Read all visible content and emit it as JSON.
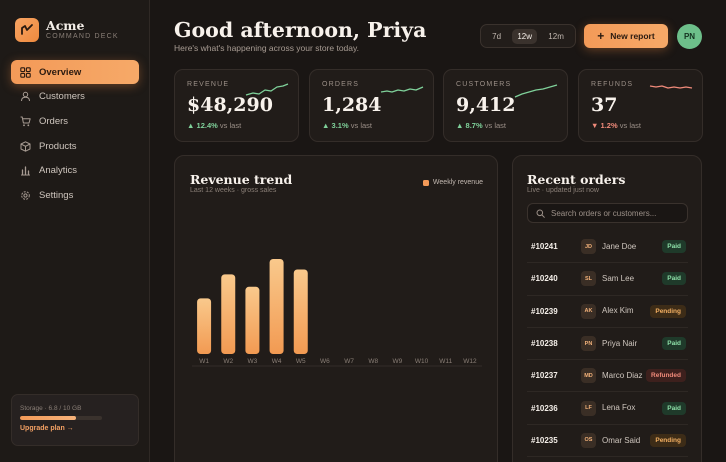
{
  "brand": {
    "name": "Acme",
    "subtitle": "COMMAND DECK"
  },
  "nav": [
    {
      "label": "Overview",
      "icon": "grid-icon",
      "active": true
    },
    {
      "label": "Customers",
      "icon": "user-icon",
      "active": false
    },
    {
      "label": "Orders",
      "icon": "cart-icon",
      "active": false
    },
    {
      "label": "Products",
      "icon": "box-icon",
      "active": false
    },
    {
      "label": "Analytics",
      "icon": "bar-chart-icon",
      "active": false
    },
    {
      "label": "Settings",
      "icon": "gear-icon",
      "active": false
    }
  ],
  "storage": {
    "label": "Storage · 6.8 / 10 GB",
    "used_fraction": 0.68,
    "link": "Upgrade plan →"
  },
  "header": {
    "greeting": "Good afternoon, Priya",
    "subtitle": "Here's what's happening across your store today.",
    "ranges": [
      "7d",
      "12w",
      "12m"
    ],
    "active_range": "12w",
    "new_report": "New report",
    "avatar": "PN"
  },
  "kpis": [
    {
      "label": "REVENUE",
      "value": "$48,290",
      "change": "12.4%",
      "direction": "up",
      "suffix": "vs last",
      "color": "#7fd19a"
    },
    {
      "label": "ORDERS",
      "value": "1,284",
      "change": "3.1%",
      "direction": "up",
      "suffix": "vs last",
      "color": "#7fd19a"
    },
    {
      "label": "CUSTOMERS",
      "value": "9,412",
      "change": "8.7%",
      "direction": "up",
      "suffix": "vs last",
      "color": "#7fd19a"
    },
    {
      "label": "REFUNDS",
      "value": "37",
      "change": "1.2%",
      "direction": "down",
      "suffix": "vs last",
      "color": "#f08a7a"
    }
  ],
  "revenue": {
    "title": "Revenue trend",
    "subtitle": "Last 12 weeks · gross sales",
    "legend": "Weekly revenue"
  },
  "chart_data": {
    "type": "bar",
    "categories": [
      "W1",
      "W2",
      "W3",
      "W4",
      "W5",
      "W6",
      "W7",
      "W8",
      "W9",
      "W10",
      "W11",
      "W12"
    ],
    "values": [
      58,
      83,
      70,
      99,
      88,
      null,
      null,
      null,
      null,
      null,
      null,
      null
    ],
    "ylim": [
      0,
      100
    ],
    "color": "#f39a58"
  },
  "orders": {
    "title": "Recent orders",
    "subtitle": "Live · updated just now",
    "search_placeholder": "Search orders or customers...",
    "rows": [
      {
        "id": "#10241",
        "initials": "JD",
        "name": "Jane Doe",
        "status": "Paid"
      },
      {
        "id": "#10240",
        "initials": "SL",
        "name": "Sam Lee",
        "status": "Paid"
      },
      {
        "id": "#10239",
        "initials": "AK",
        "name": "Alex Kim",
        "status": "Pending"
      },
      {
        "id": "#10238",
        "initials": "PN",
        "name": "Priya Nair",
        "status": "Paid"
      },
      {
        "id": "#10237",
        "initials": "MD",
        "name": "Marco Diaz",
        "status": "Refunded"
      },
      {
        "id": "#10236",
        "initials": "LF",
        "name": "Lena Fox",
        "status": "Paid"
      },
      {
        "id": "#10235",
        "initials": "OS",
        "name": "Omar Said",
        "status": "Pending"
      }
    ]
  }
}
